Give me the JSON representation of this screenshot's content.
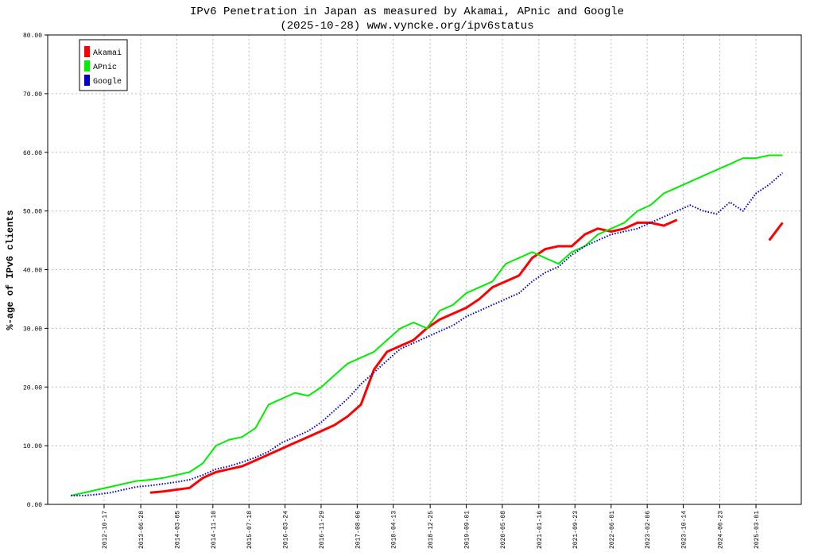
{
  "chart_data": {
    "type": "line",
    "title": "IPv6 Penetration in Japan as measured by Akamai, APnic and Google",
    "subtitle": "(2025-10-28) www.vyncke.org/ipv6status",
    "y_label": "%-age of IPv6 clients",
    "x": [
      "2012-03-01",
      "2012-06-01",
      "2012-09-01",
      "2012-12-01",
      "2013-03-01",
      "2013-06-01",
      "2013-09-01",
      "2013-12-01",
      "2014-03-01",
      "2014-06-01",
      "2014-09-01",
      "2014-12-01",
      "2015-03-01",
      "2015-06-01",
      "2015-09-01",
      "2015-12-01",
      "2016-03-01",
      "2016-06-01",
      "2016-09-01",
      "2016-12-01",
      "2017-03-01",
      "2017-06-01",
      "2017-09-01",
      "2017-12-01",
      "2018-03-01",
      "2018-06-01",
      "2018-09-01",
      "2018-12-01",
      "2019-03-01",
      "2019-06-01",
      "2019-09-01",
      "2019-12-01",
      "2020-03-01",
      "2020-06-01",
      "2020-09-01",
      "2020-12-01",
      "2021-03-01",
      "2021-06-01",
      "2021-09-01",
      "2021-12-01",
      "2022-03-01",
      "2022-06-01",
      "2022-09-01",
      "2022-12-01",
      "2023-03-01",
      "2023-06-01",
      "2023-09-01",
      "2023-12-01",
      "2024-03-01",
      "2024-06-01",
      "2024-09-01",
      "2024-12-01",
      "2025-03-01",
      "2025-06-01",
      "2025-09-01"
    ],
    "series": [
      {
        "name": "Akamai",
        "color": "#ff0000",
        "values": [
          null,
          null,
          null,
          null,
          null,
          null,
          2.0,
          2.2,
          2.5,
          2.8,
          4.5,
          5.5,
          6.0,
          6.5,
          7.5,
          8.5,
          9.5,
          10.5,
          11.5,
          12.5,
          13.5,
          15.0,
          17.0,
          23.0,
          26.0,
          27.0,
          28.0,
          30.0,
          31.5,
          32.5,
          33.5,
          35.0,
          37.0,
          38.0,
          39.0,
          42.0,
          43.5,
          44.0,
          44.0,
          46.0,
          47.0,
          46.5,
          47.0,
          48.0,
          48.0,
          47.5,
          48.5,
          null,
          null,
          null,
          null,
          null,
          null,
          45.0,
          48.0
        ]
      },
      {
        "name": "APnic",
        "color": "#00ee00",
        "values": [
          1.5,
          2.0,
          2.5,
          3.0,
          3.5,
          4.0,
          4.2,
          4.5,
          5.0,
          5.5,
          7.0,
          10.0,
          11.0,
          11.5,
          13.0,
          17.0,
          18.0,
          19.0,
          18.5,
          20.0,
          22.0,
          24.0,
          25.0,
          26.0,
          28.0,
          30.0,
          31.0,
          30.0,
          33.0,
          34.0,
          36.0,
          37.0,
          38.0,
          41.0,
          42.0,
          43.0,
          42.0,
          41.0,
          43.0,
          44.0,
          46.0,
          47.0,
          48.0,
          50.0,
          51.0,
          53.0,
          54.0,
          55.0,
          56.0,
          57.0,
          58.0,
          59.0,
          59.0,
          59.5,
          59.5
        ]
      },
      {
        "name": "Google",
        "color": "#0000cc",
        "values": [
          1.5,
          1.5,
          1.7,
          2.0,
          2.5,
          3.0,
          3.2,
          3.5,
          3.8,
          4.2,
          5.0,
          6.0,
          6.5,
          7.2,
          8.0,
          9.0,
          10.5,
          11.5,
          12.5,
          14.0,
          16.0,
          18.0,
          20.5,
          22.5,
          24.5,
          26.5,
          27.5,
          28.5,
          29.5,
          30.5,
          32.0,
          33.0,
          34.0,
          35.0,
          36.0,
          38.0,
          39.5,
          40.5,
          42.5,
          44.0,
          45.0,
          46.0,
          46.5,
          47.0,
          48.0,
          49.0,
          50.0,
          51.0,
          50.0,
          49.5,
          51.5,
          50.0,
          53.0,
          54.5,
          56.5
        ]
      }
    ],
    "xlim": [
      "2011-09-22",
      "2026-01-09"
    ],
    "xticks": [
      "2012-10-17",
      "2013-06-28",
      "2014-03-05",
      "2014-11-10",
      "2015-07-18",
      "2016-03-24",
      "2016-11-29",
      "2017-08-06",
      "2018-04-13",
      "2018-12-25",
      "2019-09-01",
      "2020-05-08",
      "2021-01-16",
      "2021-09-23",
      "2022-06-01",
      "2023-02-06",
      "2023-10-14",
      "2024-06-23",
      "2025-03-01"
    ],
    "ylim": [
      0,
      80
    ],
    "yticks": [
      {
        "value": 0,
        "label": "0.00"
      },
      {
        "value": 10,
        "label": "10.00"
      },
      {
        "value": 20,
        "label": "20.00"
      },
      {
        "value": 30,
        "label": "30.00"
      },
      {
        "value": 40,
        "label": "40.00"
      },
      {
        "value": 50,
        "label": "50.00"
      },
      {
        "value": 60,
        "label": "60.00"
      },
      {
        "value": 70,
        "label": "70.00"
      },
      {
        "value": 80,
        "label": "80.00"
      }
    ],
    "grid": true,
    "legend": "top-left"
  }
}
